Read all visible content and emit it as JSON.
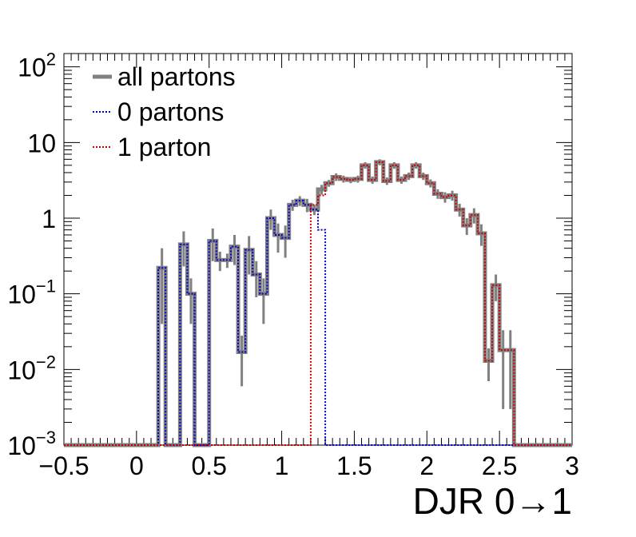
{
  "chart_data": {
    "type": "step",
    "title": "",
    "xlabel": "DJR 0→1",
    "ylabel": "",
    "xlim": [
      -0.5,
      3.0
    ],
    "ylim": [
      0.001,
      150
    ],
    "yscale": "log",
    "bins": {
      "start": -0.5,
      "width": 0.05,
      "count": 70
    },
    "x_ticks": [
      "−0.5",
      "0",
      "0.5",
      "1",
      "1.5",
      "2",
      "2.5",
      "3"
    ],
    "x_tick_values": [
      -0.5,
      0,
      0.5,
      1,
      1.5,
      2,
      2.5,
      3
    ],
    "y_ticks": [
      {
        "value": 100,
        "base": "10",
        "exp": "2"
      },
      {
        "value": 10,
        "base": "10",
        "exp": ""
      },
      {
        "value": 1,
        "base": "1",
        "exp": ""
      },
      {
        "value": 0.1,
        "base": "10",
        "exp": "−1"
      },
      {
        "value": 0.01,
        "base": "10",
        "exp": "−2"
      },
      {
        "value": 0.001,
        "base": "10",
        "exp": "−3"
      }
    ],
    "legend": {
      "placement": "top-left",
      "entries": [
        {
          "label": "all partons",
          "color": "#808080",
          "style": "solid"
        },
        {
          "label": "0 partons",
          "color": "#0000cc",
          "style": "dotted"
        },
        {
          "label": "1 parton",
          "color": "#cc0000",
          "style": "dotted"
        }
      ]
    },
    "series": [
      {
        "name": "all partons",
        "color": "#808080",
        "values": [
          0.001,
          0.001,
          0.001,
          0.001,
          0.001,
          0.001,
          0.001,
          0.001,
          0.001,
          0.001,
          0.001,
          0.001,
          0.001,
          0.22,
          0.001,
          0.001,
          0.45,
          0.1,
          0.001,
          0.001,
          0.5,
          0.28,
          0.28,
          0.42,
          0.017,
          0.38,
          0.18,
          0.1,
          1.0,
          0.6,
          0.55,
          1.5,
          1.7,
          1.5,
          1.3,
          2.4,
          2.9,
          3.5,
          3.3,
          3.2,
          3.3,
          5.0,
          3.2,
          5.5,
          3.1,
          5.0,
          3.2,
          3.6,
          5.0,
          3.6,
          2.9,
          2.1,
          1.9,
          2.0,
          1.3,
          0.8,
          1.1,
          0.63,
          0.013,
          0.13,
          0.018,
          0.018,
          0.001,
          0.001,
          0.001,
          0.001,
          0.001,
          0.001,
          0.001,
          0.001
        ],
        "errors": [
          0,
          0,
          0,
          0,
          0,
          0,
          0,
          0,
          0,
          0,
          0,
          0,
          0,
          0.18,
          0,
          0,
          0.22,
          0.06,
          0,
          0,
          0.23,
          0.08,
          0.06,
          0.18,
          0.011,
          0.2,
          0.09,
          0.06,
          0.3,
          0.25,
          0.25,
          0.25,
          0.25,
          0.3,
          0.2,
          0.35,
          0.3,
          0.4,
          0.35,
          0.3,
          0.35,
          0.5,
          0.35,
          0.5,
          0.35,
          0.5,
          0.35,
          0.4,
          0.5,
          0.4,
          0.35,
          0.3,
          0.3,
          0.3,
          0.25,
          0.2,
          0.25,
          0.2,
          0.006,
          0.05,
          0.015,
          0.015,
          0,
          0,
          0,
          0,
          0,
          0,
          0,
          0
        ]
      },
      {
        "name": "0 partons",
        "color": "#0000cc",
        "values": [
          0.001,
          0.001,
          0.001,
          0.001,
          0.001,
          0.001,
          0.001,
          0.001,
          0.001,
          0.001,
          0.001,
          0.001,
          0.001,
          0.22,
          0.001,
          0.001,
          0.45,
          0.1,
          0.001,
          0.001,
          0.5,
          0.28,
          0.28,
          0.42,
          0.017,
          0.38,
          0.18,
          0.1,
          1.0,
          0.6,
          0.55,
          1.5,
          1.7,
          1.5,
          1.3,
          0.7,
          0.001,
          0.001,
          0.001,
          0.001,
          0.001,
          0.001,
          0.001,
          0.001,
          0.001,
          0.001,
          0.001,
          0.001,
          0.001,
          0.001,
          0.001,
          0.001,
          0.001,
          0.001,
          0.001,
          0.001,
          0.001,
          0.001,
          0.001,
          0.001,
          0.001,
          0.001,
          0.001,
          0.001,
          0.001,
          0.001,
          0.001,
          0.001,
          0.001,
          0.001
        ]
      },
      {
        "name": "1 parton",
        "color": "#cc0000",
        "values": [
          0.001,
          0.001,
          0.001,
          0.001,
          0.001,
          0.001,
          0.001,
          0.001,
          0.001,
          0.001,
          0.001,
          0.001,
          0.001,
          0.001,
          0.001,
          0.001,
          0.001,
          0.001,
          0.001,
          0.001,
          0.001,
          0.001,
          0.001,
          0.001,
          0.001,
          0.001,
          0.001,
          0.001,
          0.001,
          0.001,
          0.001,
          0.001,
          0.001,
          0.001,
          1.5,
          2.0,
          2.9,
          3.5,
          3.3,
          3.2,
          3.3,
          5.0,
          3.2,
          5.5,
          3.1,
          5.0,
          3.2,
          3.6,
          5.0,
          3.6,
          2.9,
          2.1,
          1.9,
          2.0,
          1.3,
          0.8,
          1.1,
          0.63,
          0.013,
          0.13,
          0.018,
          0.018,
          0.001,
          0.001,
          0.001,
          0.001,
          0.001,
          0.001,
          0.001,
          0.001
        ]
      }
    ]
  }
}
